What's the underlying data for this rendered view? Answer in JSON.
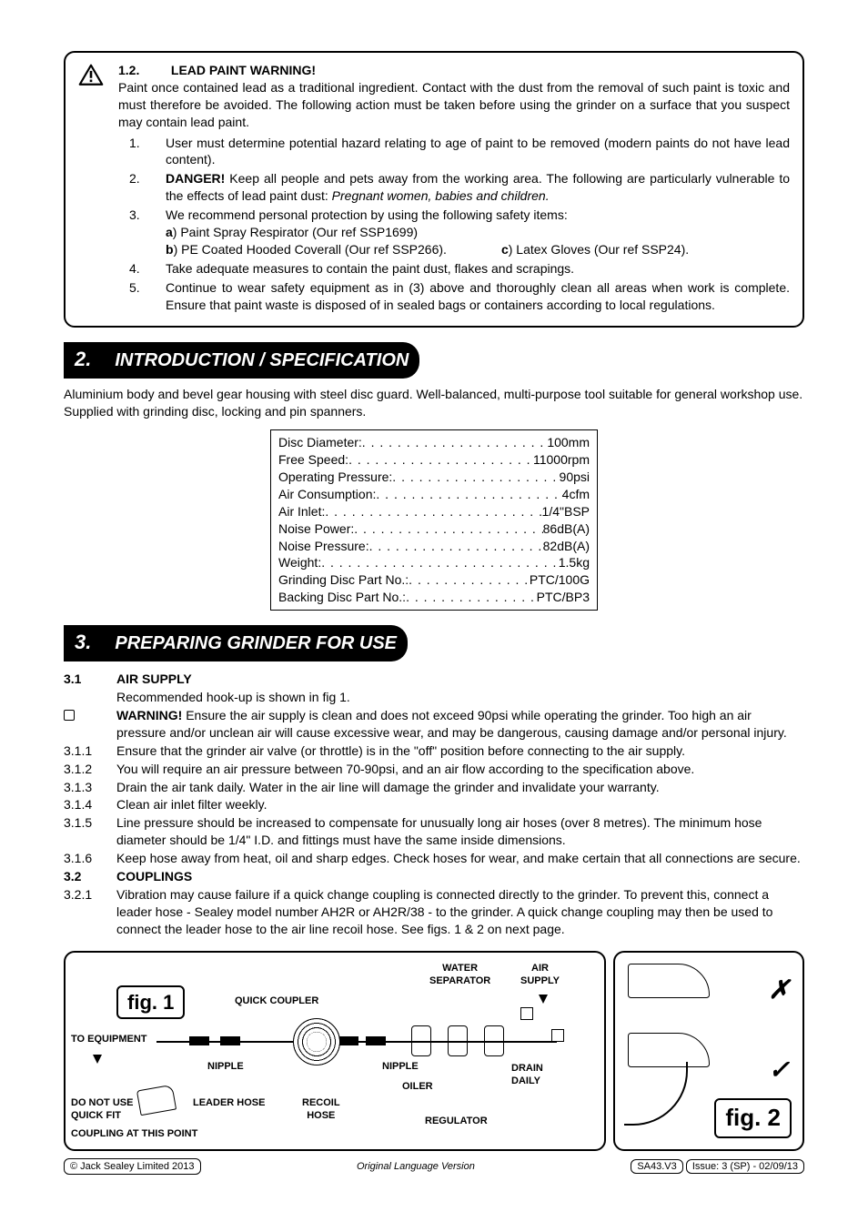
{
  "colors": {
    "text": "#000000",
    "background": "#ffffff",
    "section_bar_bg": "#000000",
    "section_bar_text": "#ffffff",
    "border": "#000000"
  },
  "warning": {
    "num": "1.2.",
    "title": "LEAD PAINT WARNING!",
    "intro": "Paint once contained lead as a traditional ingredient. Contact with the dust from the removal of such paint is toxic and must therefore be avoided. The following action must be taken before using the grinder on a surface that you suspect may contain lead paint.",
    "items": [
      {
        "n": "1.",
        "text": "User must determine potential hazard relating to age of paint to be removed (modern paints do not have lead content)."
      },
      {
        "n": "2.",
        "danger": "DANGER!",
        "text": " Keep all people and pets away from the working area. The following are particularly vulnerable to the effects of lead paint dust: ",
        "italic": "Pregnant women, babies and children."
      },
      {
        "n": "3.",
        "text": "We recommend personal protection by using the following safety items:",
        "a_b": "a",
        "a_txt": ") Paint Spray Respirator (Our ref SSP1699)",
        "b_b": "b",
        "b_txt": ") PE Coated Hooded Coverall (Our ref SSP266).",
        "c_b": "c",
        "c_txt": ") Latex Gloves (Our ref SSP24)."
      },
      {
        "n": "4.",
        "text": "Take adequate measures to contain the paint dust, flakes and scrapings."
      },
      {
        "n": "5.",
        "text": "Continue to wear safety equipment as in (3) above and thoroughly clean all areas when work is complete. Ensure that paint waste is disposed of in sealed bags or containers according to local regulations."
      }
    ]
  },
  "section2": {
    "num": "2.",
    "title": "INTRODUCTION / SPECIFICATION",
    "intro": "Aluminium body and bevel gear housing with steel disc guard. Well-balanced, multi-purpose tool suitable for general workshop use. Supplied with grinding disc, locking and pin spanners.",
    "specs": [
      {
        "label": "Disc Diameter:",
        "value": "100mm"
      },
      {
        "label": "Free Speed:",
        "value": "11000rpm"
      },
      {
        "label": "Operating Pressure:",
        "value": "90psi"
      },
      {
        "label": "Air Consumption:",
        "value": "4cfm"
      },
      {
        "label": "Air Inlet:",
        "value": "1/4\"BSP"
      },
      {
        "label": "Noise Power:",
        "value": "86dB(A)"
      },
      {
        "label": "Noise Pressure:",
        "value": "82dB(A)"
      },
      {
        "label": "Weight:",
        "value": "1.5kg"
      },
      {
        "label": "Grinding Disc Part No.:",
        "value": "PTC/100G"
      },
      {
        "label": "Backing Disc Part No.:",
        "value": "PTC/BP3"
      }
    ]
  },
  "section3": {
    "num": "3.",
    "title": "PREPARING GRINDER FOR USE",
    "s31_num": "3.1",
    "s31_title": "AIR SUPPLY",
    "s31_line": "Recommended hook-up is shown in fig 1.",
    "warn_b": "WARNING!",
    "warn_txt": " Ensure the air supply is clean and does not exceed 90psi while operating the grinder. Too high an air pressure and/or unclean air will cause excessive wear, and may be dangerous, causing damage and/or personal injury.",
    "lines": [
      {
        "n": "3.1.1",
        "t": "Ensure that the grinder air valve (or throttle) is in the \"off\" position before connecting to the air supply."
      },
      {
        "n": "3.1.2",
        "t": "You will require an air pressure between 70-90psi, and an air flow according to the specification above."
      },
      {
        "n": "3.1.3",
        "t": "Drain the air tank daily. Water in the air line will damage the grinder and invalidate your warranty."
      },
      {
        "n": "3.1.4",
        "t": "Clean air inlet filter weekly."
      },
      {
        "n": "3.1.5",
        "t": "Line pressure should be increased to compensate for unusually long air hoses (over 8 metres). The minimum hose diameter should be 1/4\" I.D. and fittings must have the same inside dimensions."
      },
      {
        "n": "3.1.6",
        "t": "Keep hose away from heat, oil and sharp edges. Check hoses for wear, and make certain that all connections are secure."
      }
    ],
    "s32_num": "3.2",
    "s32_title": "COUPLINGS",
    "s321_num": "3.2.1",
    "s321_txt": "Vibration may cause failure if a quick change coupling is connected directly to the grinder. To prevent this, connect a leader hose - Sealey model number AH2R or AH2R/38 - to the grinder. A quick change coupling may then be used to connect the leader hose to the air line recoil hose. See figs. 1 & 2 on next page."
  },
  "fig1": {
    "label": "fig. 1",
    "labels": {
      "quick_coupler": "QUICK COUPLER",
      "water_separator": "WATER\nSEPARATOR",
      "air_supply": "AIR\nSUPPLY",
      "to_equipment": "TO EQUIPMENT",
      "nipple1": "NIPPLE",
      "nipple2": "NIPPLE",
      "leader_hose": "LEADER HOSE",
      "recoil_hose": "RECOIL\nHOSE",
      "oiler": "OILER",
      "regulator": "REGULATOR",
      "drain_daily": "DRAIN\nDAILY",
      "do_not": "DO NOT",
      "do_not_rest": " USE",
      "quick_fit": "QUICK FIT",
      "coupling_line": "COUPLING AT THIS POINT"
    }
  },
  "fig2": {
    "label": "fig. 2",
    "x": "✗",
    "check": "✓"
  },
  "footer": {
    "left": "© Jack Sealey Limited 2013",
    "mid": "Original Language Version",
    "model": "SA43.V3",
    "issue": "Issue: 3 (SP) - 02/09/13"
  }
}
